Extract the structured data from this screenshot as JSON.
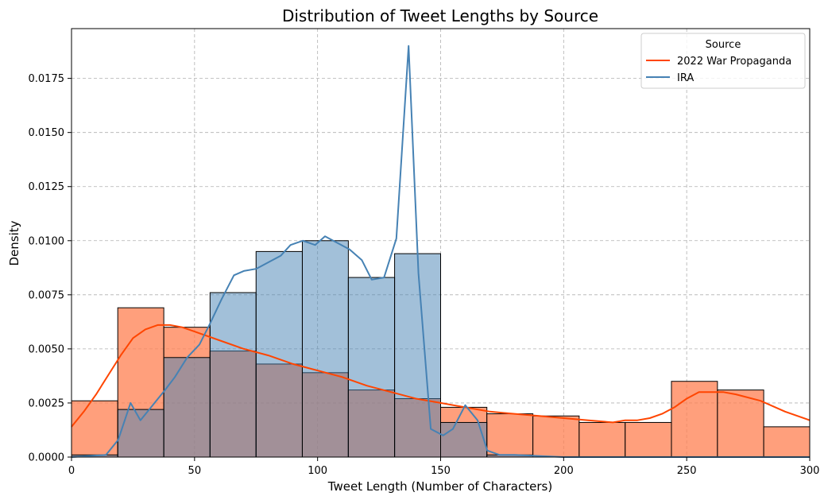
{
  "chart_data": {
    "type": "histogram",
    "title": "Distribution of Tweet Lengths by Source",
    "xlabel": "Tweet Length (Number of Characters)",
    "ylabel": "Density",
    "xlim": [
      0,
      300
    ],
    "ylim": [
      0,
      0.0198
    ],
    "x_ticks": [
      0,
      50,
      100,
      150,
      200,
      250,
      300
    ],
    "y_ticks": [
      0.0,
      0.0025,
      0.005,
      0.0075,
      0.01,
      0.0125,
      0.015,
      0.0175
    ],
    "y_tick_labels": [
      "0.0000",
      "0.0025",
      "0.0050",
      "0.0075",
      "0.0100",
      "0.0125",
      "0.0150",
      "0.0175"
    ],
    "grid": true,
    "legend": {
      "title": "Source",
      "position": "top-right",
      "entries": [
        {
          "label": "2022 War Propaganda",
          "color": "#ff4500"
        },
        {
          "label": "IRA",
          "color": "#4682b4"
        }
      ]
    },
    "bin_edges": [
      0,
      18.8,
      37.5,
      56.3,
      75,
      93.8,
      112.5,
      131.3,
      150,
      168.8,
      187.5,
      206.3,
      225,
      243.8,
      262.5,
      281.3,
      300
    ],
    "series": [
      {
        "name": "2022 War Propaganda",
        "fill_color": "#ff7f50",
        "line_color": "#ff4500",
        "bar_values": [
          0.0026,
          0.0069,
          0.006,
          0.0049,
          0.0043,
          0.0039,
          0.0031,
          0.0027,
          0.0023,
          0.002,
          0.0019,
          0.0016,
          0.0016,
          0.0035,
          0.0031,
          0.0014
        ],
        "kde_x": [
          0,
          5,
          10,
          15,
          20,
          25,
          30,
          35,
          40,
          45,
          50,
          60,
          70,
          80,
          90,
          100,
          110,
          120,
          130,
          140,
          150,
          160,
          170,
          180,
          190,
          200,
          210,
          220,
          225,
          230,
          235,
          240,
          245,
          250,
          255,
          260,
          265,
          270,
          280,
          290,
          300
        ],
        "kde_y": [
          0.0014,
          0.0021,
          0.0029,
          0.0038,
          0.0047,
          0.0055,
          0.0059,
          0.0061,
          0.0061,
          0.006,
          0.0058,
          0.0054,
          0.005,
          0.0047,
          0.0043,
          0.004,
          0.0037,
          0.0033,
          0.003,
          0.0027,
          0.0025,
          0.0023,
          0.0021,
          0.002,
          0.0019,
          0.0018,
          0.0017,
          0.0016,
          0.0017,
          0.0017,
          0.0018,
          0.002,
          0.0023,
          0.0027,
          0.003,
          0.003,
          0.003,
          0.0029,
          0.0026,
          0.0021,
          0.0017
        ]
      },
      {
        "name": "IRA",
        "fill_color": "#4682b4",
        "line_color": "#4682b4",
        "bar_values": [
          0.0001,
          0.0022,
          0.0046,
          0.0076,
          0.0095,
          0.01,
          0.0083,
          0.0094,
          0.0016,
          0.0001,
          0.0,
          0.0,
          0.0,
          0.0,
          0.0,
          0.0
        ],
        "kde_x": [
          0,
          14,
          19,
          24,
          28,
          33,
          38,
          42,
          47,
          52,
          56,
          61,
          66,
          70,
          75,
          80,
          85,
          89,
          94,
          99,
          103,
          108,
          113,
          118,
          122,
          127,
          132,
          137,
          141,
          146,
          151,
          155,
          160,
          165,
          169,
          174,
          180,
          200,
          250,
          300
        ],
        "kde_y": [
          0.0,
          0.0001,
          0.0008,
          0.0025,
          0.0017,
          0.0024,
          0.0031,
          0.0037,
          0.0046,
          0.0052,
          0.0061,
          0.0073,
          0.0084,
          0.0086,
          0.0087,
          0.009,
          0.0093,
          0.0098,
          0.01,
          0.0098,
          0.0102,
          0.0099,
          0.0096,
          0.0091,
          0.0082,
          0.0083,
          0.0101,
          0.019,
          0.0085,
          0.0013,
          0.001,
          0.0013,
          0.0024,
          0.0017,
          0.0003,
          0.0001,
          0.0001,
          0.0,
          0.0,
          0.0
        ]
      }
    ]
  }
}
